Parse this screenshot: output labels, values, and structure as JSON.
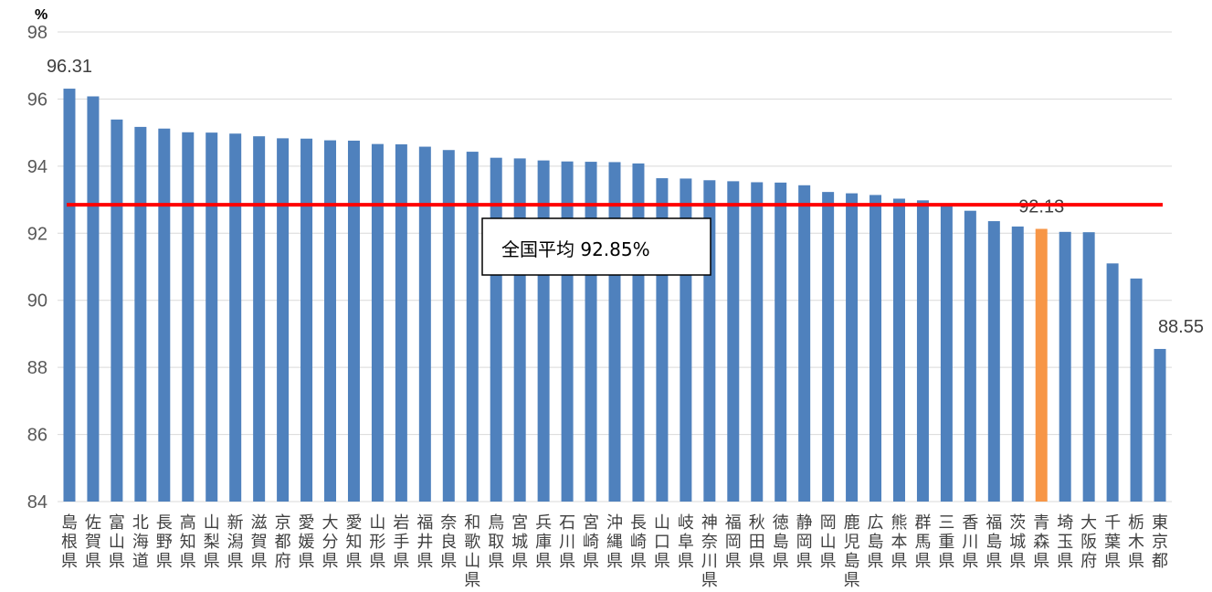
{
  "chart_data": {
    "type": "bar",
    "unit_label": "%",
    "ylim": [
      84,
      98
    ],
    "yticks": [
      84,
      86,
      88,
      90,
      92,
      94,
      96,
      98
    ],
    "grid": true,
    "categories": [
      "島根県",
      "佐賀県",
      "富山県",
      "北海道",
      "長野県",
      "高知県",
      "山梨県",
      "新潟県",
      "滋賀県",
      "京都府",
      "愛媛県",
      "大分県",
      "愛知県",
      "山形県",
      "岩手県",
      "福井県",
      "奈良県",
      "和歌山県",
      "鳥取県",
      "宮城県",
      "兵庫県",
      "石川県",
      "宮崎県",
      "沖縄県",
      "長崎県",
      "山口県",
      "岐阜県",
      "神奈川県",
      "福岡県",
      "秋田県",
      "徳島県",
      "静岡県",
      "岡山県",
      "鹿児島県",
      "広島県",
      "熊本県",
      "群馬県",
      "三重県",
      "香川県",
      "福島県",
      "茨城県",
      "青森県",
      "埼玉県",
      "大阪府",
      "千葉県",
      "栃木県",
      "東京都"
    ],
    "values": [
      96.31,
      96.08,
      95.39,
      95.17,
      95.12,
      95.01,
      95.0,
      94.97,
      94.89,
      94.83,
      94.82,
      94.77,
      94.76,
      94.66,
      94.65,
      94.58,
      94.48,
      94.43,
      94.25,
      94.23,
      94.17,
      94.14,
      94.13,
      94.12,
      94.08,
      93.64,
      93.63,
      93.58,
      93.55,
      93.52,
      93.51,
      93.43,
      93.23,
      93.19,
      93.14,
      93.03,
      92.98,
      92.86,
      92.67,
      92.36,
      92.2,
      92.13,
      92.04,
      92.03,
      91.1,
      90.65,
      88.55
    ],
    "highlight_index": 41,
    "colors": {
      "bar": "#4f81bd",
      "highlight": "#f79646",
      "average_line": "#ff0000",
      "grid": "#d9d9d9"
    },
    "data_labels": [
      {
        "index": 0,
        "text": "96.31"
      },
      {
        "index": 41,
        "text": "92.13"
      },
      {
        "index": 46,
        "text": "88.55"
      }
    ],
    "average": {
      "value": 92.85,
      "label": "全国平均 92.85%"
    }
  }
}
